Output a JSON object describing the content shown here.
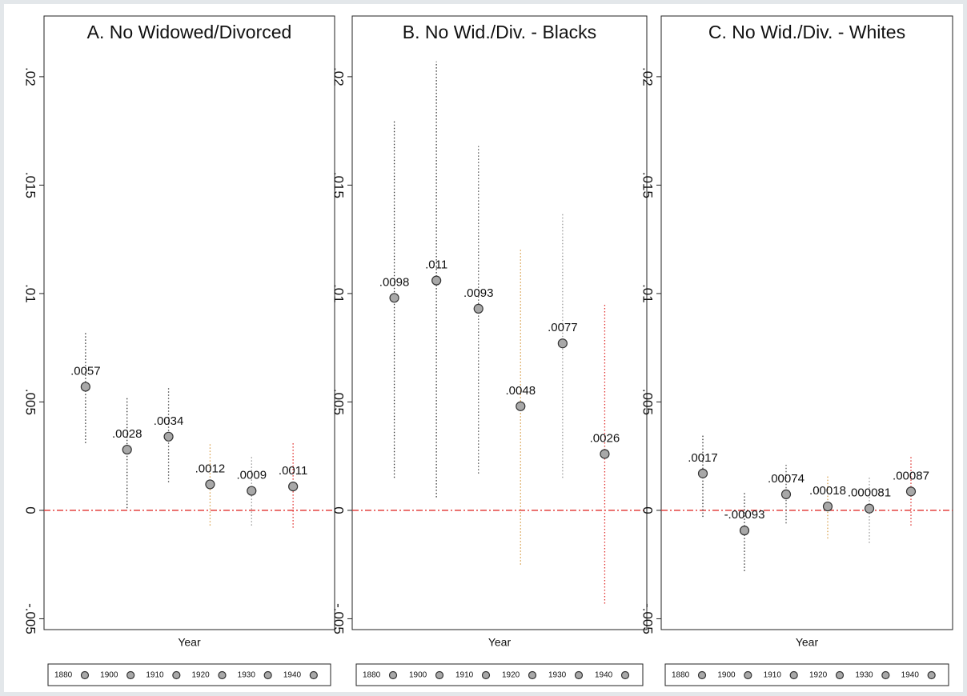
{
  "chart_data": [
    {
      "type": "errorbar",
      "title": "A. No Widowed/Divorced",
      "xlabel": "Year",
      "ylim": [
        -0.0055,
        0.0228
      ],
      "yticks": [
        {
          "value": -0.005,
          "label": "-.005"
        },
        0,
        {
          "value": 0.005,
          "label": ".005"
        },
        {
          "value": 0.01,
          "label": ".01"
        },
        {
          "value": 0.015,
          "label": ".015"
        },
        {
          "value": 0.02,
          "label": ".02"
        }
      ],
      "hline": 0,
      "hline_color": "#e0312f",
      "series": [
        {
          "name": "1880",
          "color": "#333333",
          "values": [
            0.0057
          ],
          "value_labels": [
            ".0057"
          ],
          "lower": [
            0.0031
          ],
          "upper": [
            0.0082
          ]
        },
        {
          "name": "1900",
          "color": "#333333",
          "values": [
            0.0028
          ],
          "value_labels": [
            ".0028"
          ],
          "lower": [
            0.0001
          ],
          "upper": [
            0.0052
          ]
        },
        {
          "name": "1910",
          "color": "#555555",
          "values": [
            0.0034
          ],
          "value_labels": [
            ".0034"
          ],
          "lower": [
            0.0013
          ],
          "upper": [
            0.0057
          ]
        },
        {
          "name": "1920",
          "color": "#d9a04c",
          "values": [
            0.0012
          ],
          "value_labels": [
            ".0012"
          ],
          "lower": [
            -0.0007
          ],
          "upper": [
            0.0031
          ]
        },
        {
          "name": "1930",
          "color": "#999999",
          "values": [
            0.0009
          ],
          "value_labels": [
            ".0009"
          ],
          "lower": [
            -0.0007
          ],
          "upper": [
            0.0025
          ]
        },
        {
          "name": "1940",
          "color": "#e0312f",
          "values": [
            0.0011
          ],
          "value_labels": [
            ".0011"
          ],
          "lower": [
            -0.0008
          ],
          "upper": [
            0.0031
          ]
        }
      ]
    },
    {
      "type": "errorbar",
      "title": "B. No Wid./Div. - Blacks",
      "xlabel": "Year",
      "ylim": [
        -0.0055,
        0.0228
      ],
      "yticks": [
        {
          "value": -0.005,
          "label": "-.005"
        },
        0,
        {
          "value": 0.005,
          "label": ".005"
        },
        {
          "value": 0.01,
          "label": ".01"
        },
        {
          "value": 0.015,
          "label": ".015"
        },
        {
          "value": 0.02,
          "label": ".02"
        }
      ],
      "hline": 0,
      "hline_color": "#e0312f",
      "series": [
        {
          "name": "1880",
          "color": "#333333",
          "values": [
            0.0098
          ],
          "value_labels": [
            ".0098"
          ],
          "lower": [
            0.0015
          ],
          "upper": [
            0.018
          ]
        },
        {
          "name": "1900",
          "color": "#333333",
          "values": [
            0.0106
          ],
          "value_labels": [
            ".011"
          ],
          "lower": [
            0.0006
          ],
          "upper": [
            0.0207
          ]
        },
        {
          "name": "1910",
          "color": "#555555",
          "values": [
            0.0093
          ],
          "value_labels": [
            ".0093"
          ],
          "lower": [
            0.0017
          ],
          "upper": [
            0.0168
          ]
        },
        {
          "name": "1920",
          "color": "#d9a04c",
          "values": [
            0.0048
          ],
          "value_labels": [
            ".0048"
          ],
          "lower": [
            -0.0025
          ],
          "upper": [
            0.0121
          ]
        },
        {
          "name": "1930",
          "color": "#999999",
          "values": [
            0.0077
          ],
          "value_labels": [
            ".0077"
          ],
          "lower": [
            0.0015
          ],
          "upper": [
            0.0137
          ]
        },
        {
          "name": "1940",
          "color": "#e0312f",
          "values": [
            0.0026
          ],
          "value_labels": [
            ".0026"
          ],
          "lower": [
            -0.0043
          ],
          "upper": [
            0.0095
          ]
        }
      ]
    },
    {
      "type": "errorbar",
      "title": "C. No Wid./Div. - Whites",
      "xlabel": "Year",
      "ylim": [
        -0.0055,
        0.0228
      ],
      "yticks": [
        {
          "value": -0.005,
          "label": "-.005"
        },
        0,
        {
          "value": 0.005,
          "label": ".005"
        },
        {
          "value": 0.01,
          "label": ".01"
        },
        {
          "value": 0.015,
          "label": ".015"
        },
        {
          "value": 0.02,
          "label": ".02"
        }
      ],
      "hline": 0,
      "hline_color": "#e0312f",
      "series": [
        {
          "name": "1880",
          "color": "#333333",
          "values": [
            0.0017
          ],
          "value_labels": [
            ".0017"
          ],
          "lower": [
            -0.0003
          ],
          "upper": [
            0.0035
          ]
        },
        {
          "name": "1900",
          "color": "#333333",
          "values": [
            -0.00093
          ],
          "value_labels": [
            "-.00093"
          ],
          "lower": [
            -0.0028
          ],
          "upper": [
            0.0008
          ]
        },
        {
          "name": "1910",
          "color": "#555555",
          "values": [
            0.00074
          ],
          "value_labels": [
            ".00074"
          ],
          "lower": [
            -0.0006
          ],
          "upper": [
            0.0021
          ]
        },
        {
          "name": "1920",
          "color": "#d9a04c",
          "values": [
            0.00018
          ],
          "value_labels": [
            ".00018"
          ],
          "lower": [
            -0.0013
          ],
          "upper": [
            0.0016
          ]
        },
        {
          "name": "1930",
          "color": "#999999",
          "values": [
            8.1e-05
          ],
          "value_labels": [
            ".000081"
          ],
          "lower": [
            -0.0015
          ],
          "upper": [
            0.0016
          ]
        },
        {
          "name": "1940",
          "color": "#e0312f",
          "values": [
            0.00087
          ],
          "value_labels": [
            ".00087"
          ],
          "lower": [
            -0.0007
          ],
          "upper": [
            0.0025
          ]
        }
      ]
    }
  ]
}
